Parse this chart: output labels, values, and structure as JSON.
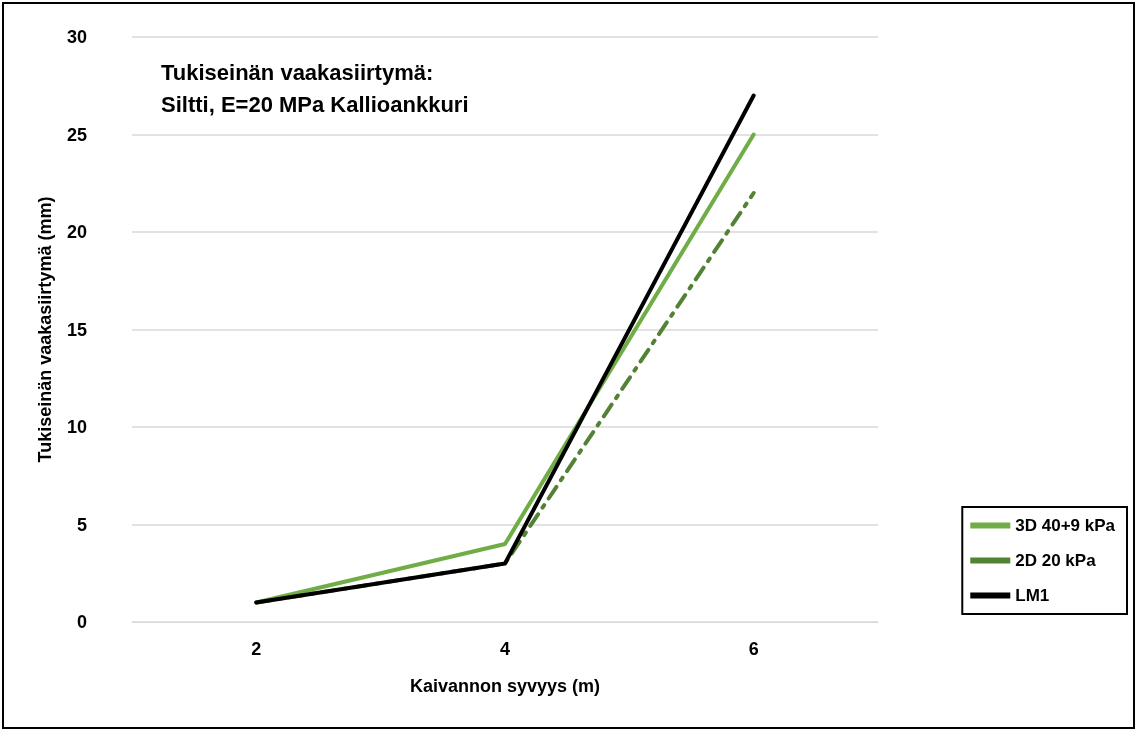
{
  "chart_data": {
    "type": "line",
    "title": "Tukiseinän vaakasiirtymä:",
    "subtitle": "Siltti, E=20 MPa Kallioankkuri",
    "xlabel": "Kaivannon syvyys (m)",
    "ylabel": "Tukiseinän vaakasiirtymä (mm)",
    "categories": [
      "2",
      "4",
      "6"
    ],
    "series": [
      {
        "name": "3D 40+9 kPa",
        "color": "#70ad47",
        "values": [
          1,
          4,
          25
        ],
        "line_style": "solid"
      },
      {
        "name": "2D 20 kPa",
        "color": "#548235",
        "values": [
          1,
          3,
          22
        ],
        "line_style": "dashed"
      },
      {
        "name": "LM1",
        "color": "#000000",
        "values": [
          1,
          3,
          27
        ],
        "line_style": "solid"
      }
    ],
    "ylim": [
      0,
      30
    ],
    "yticks": [
      0,
      5,
      10,
      15,
      20,
      25,
      30
    ],
    "grid": "y",
    "legend": "right",
    "marker": "none"
  }
}
